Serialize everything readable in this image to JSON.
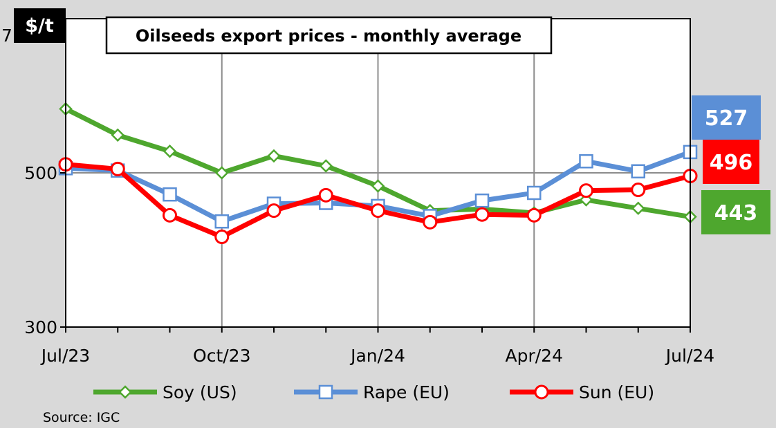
{
  "chart_data": {
    "type": "line",
    "title": "Oilseeds export prices - monthly average",
    "unit_label": "$/t",
    "y_partial_label": "7",
    "ylim": [
      300,
      700
    ],
    "y_ticks": [
      300,
      500
    ],
    "x": [
      "Jul/23",
      "Aug/23",
      "Sep/23",
      "Oct/23",
      "Nov/23",
      "Dec/23",
      "Jan/24",
      "Feb/24",
      "Mar/24",
      "Apr/24",
      "May/24",
      "Jun/24",
      "Jul/24"
    ],
    "x_tick_labels": [
      {
        "index": 0,
        "label": "Jul/23"
      },
      {
        "index": 3,
        "label": "Oct/23"
      },
      {
        "index": 6,
        "label": "Jan/24"
      },
      {
        "index": 9,
        "label": "Apr/24"
      },
      {
        "index": 12,
        "label": "Jul/24"
      }
    ],
    "grid": true,
    "legend_position": "bottom",
    "series": [
      {
        "name": "Soy (US)",
        "color": "#4ea72e",
        "marker": "diamond",
        "values": [
          583,
          549,
          528,
          500,
          522,
          509,
          483,
          451,
          453,
          448,
          465,
          454,
          443
        ]
      },
      {
        "name": "Rape (EU)",
        "color": "#5b8fd6",
        "marker": "square",
        "values": [
          506,
          503,
          472,
          437,
          460,
          461,
          457,
          444,
          464,
          474,
          515,
          502,
          527
        ]
      },
      {
        "name": "Sun (EU)",
        "color": "#ff0000",
        "marker": "circle",
        "values": [
          511,
          505,
          445,
          417,
          451,
          471,
          451,
          436,
          446,
          445,
          477,
          478,
          496
        ]
      }
    ],
    "end_labels": [
      {
        "text": "527",
        "color": "#5b8fd6"
      },
      {
        "text": "496",
        "color": "#ff0000"
      },
      {
        "text": "443",
        "color": "#4ea72e"
      }
    ],
    "source": "Source:  IGC"
  }
}
